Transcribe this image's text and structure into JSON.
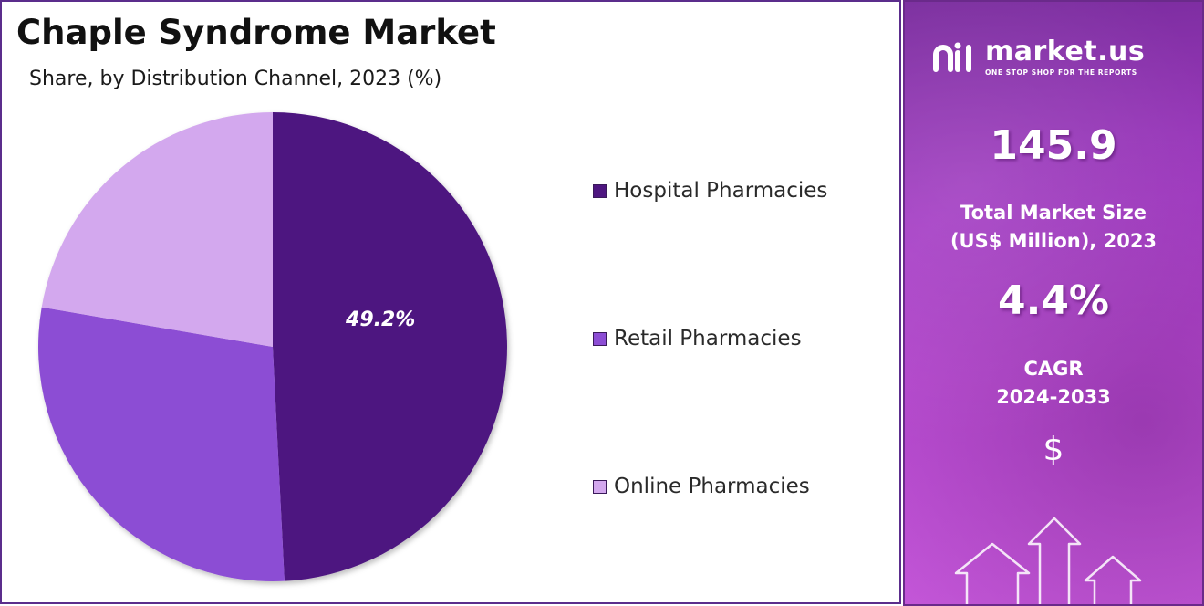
{
  "header": {
    "title": "Chaple Syndrome Market",
    "subtitle": "Share, by Distribution Channel, 2023 (%)"
  },
  "chart_data": {
    "type": "pie",
    "categories": [
      "Hospital Pharmacies",
      "Retail Pharmacies",
      "Online Pharmacies"
    ],
    "values": [
      49.2,
      28.5,
      22.3
    ],
    "data_labels": [
      "49.2%",
      "",
      ""
    ],
    "colors": [
      "#4e1680",
      "#8c4dd4",
      "#d3a8ee"
    ],
    "legend_position": "right",
    "title": "Chaple Syndrome Market",
    "subtitle": "Share, by Distribution Channel, 2023 (%)"
  },
  "info_panel": {
    "brand_name": "market.us",
    "brand_tagline": "ONE STOP SHOP FOR THE REPORTS",
    "market_size_value": "145.9",
    "market_size_label_line1": "Total Market Size",
    "market_size_label_line2": "(US$ Million), 2023",
    "cagr_value": "4.4%",
    "cagr_label_line1": "CAGR",
    "cagr_label_line2": "2024-2033",
    "currency_symbol": "$",
    "brand_icon": "market-us-logo-icon",
    "decor_icon": "up-arrows-icon"
  }
}
